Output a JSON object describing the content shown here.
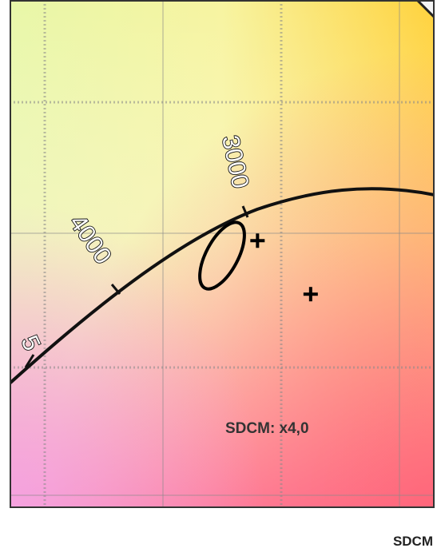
{
  "chart_data": {
    "type": "scatter",
    "title": "",
    "annotation": "SDCM: x4,0",
    "curve_labels": [
      "5",
      "4000",
      "3000"
    ],
    "footer_label": "SDCM",
    "series": [
      {
        "name": "",
        "points": [
          [
            0.4,
            0.385
          ],
          [
            0.3925,
            0.39
          ]
        ]
      }
    ],
    "colors": {
      "curve": "#111111",
      "ellipse": "#000000",
      "frame": "#333333"
    }
  }
}
